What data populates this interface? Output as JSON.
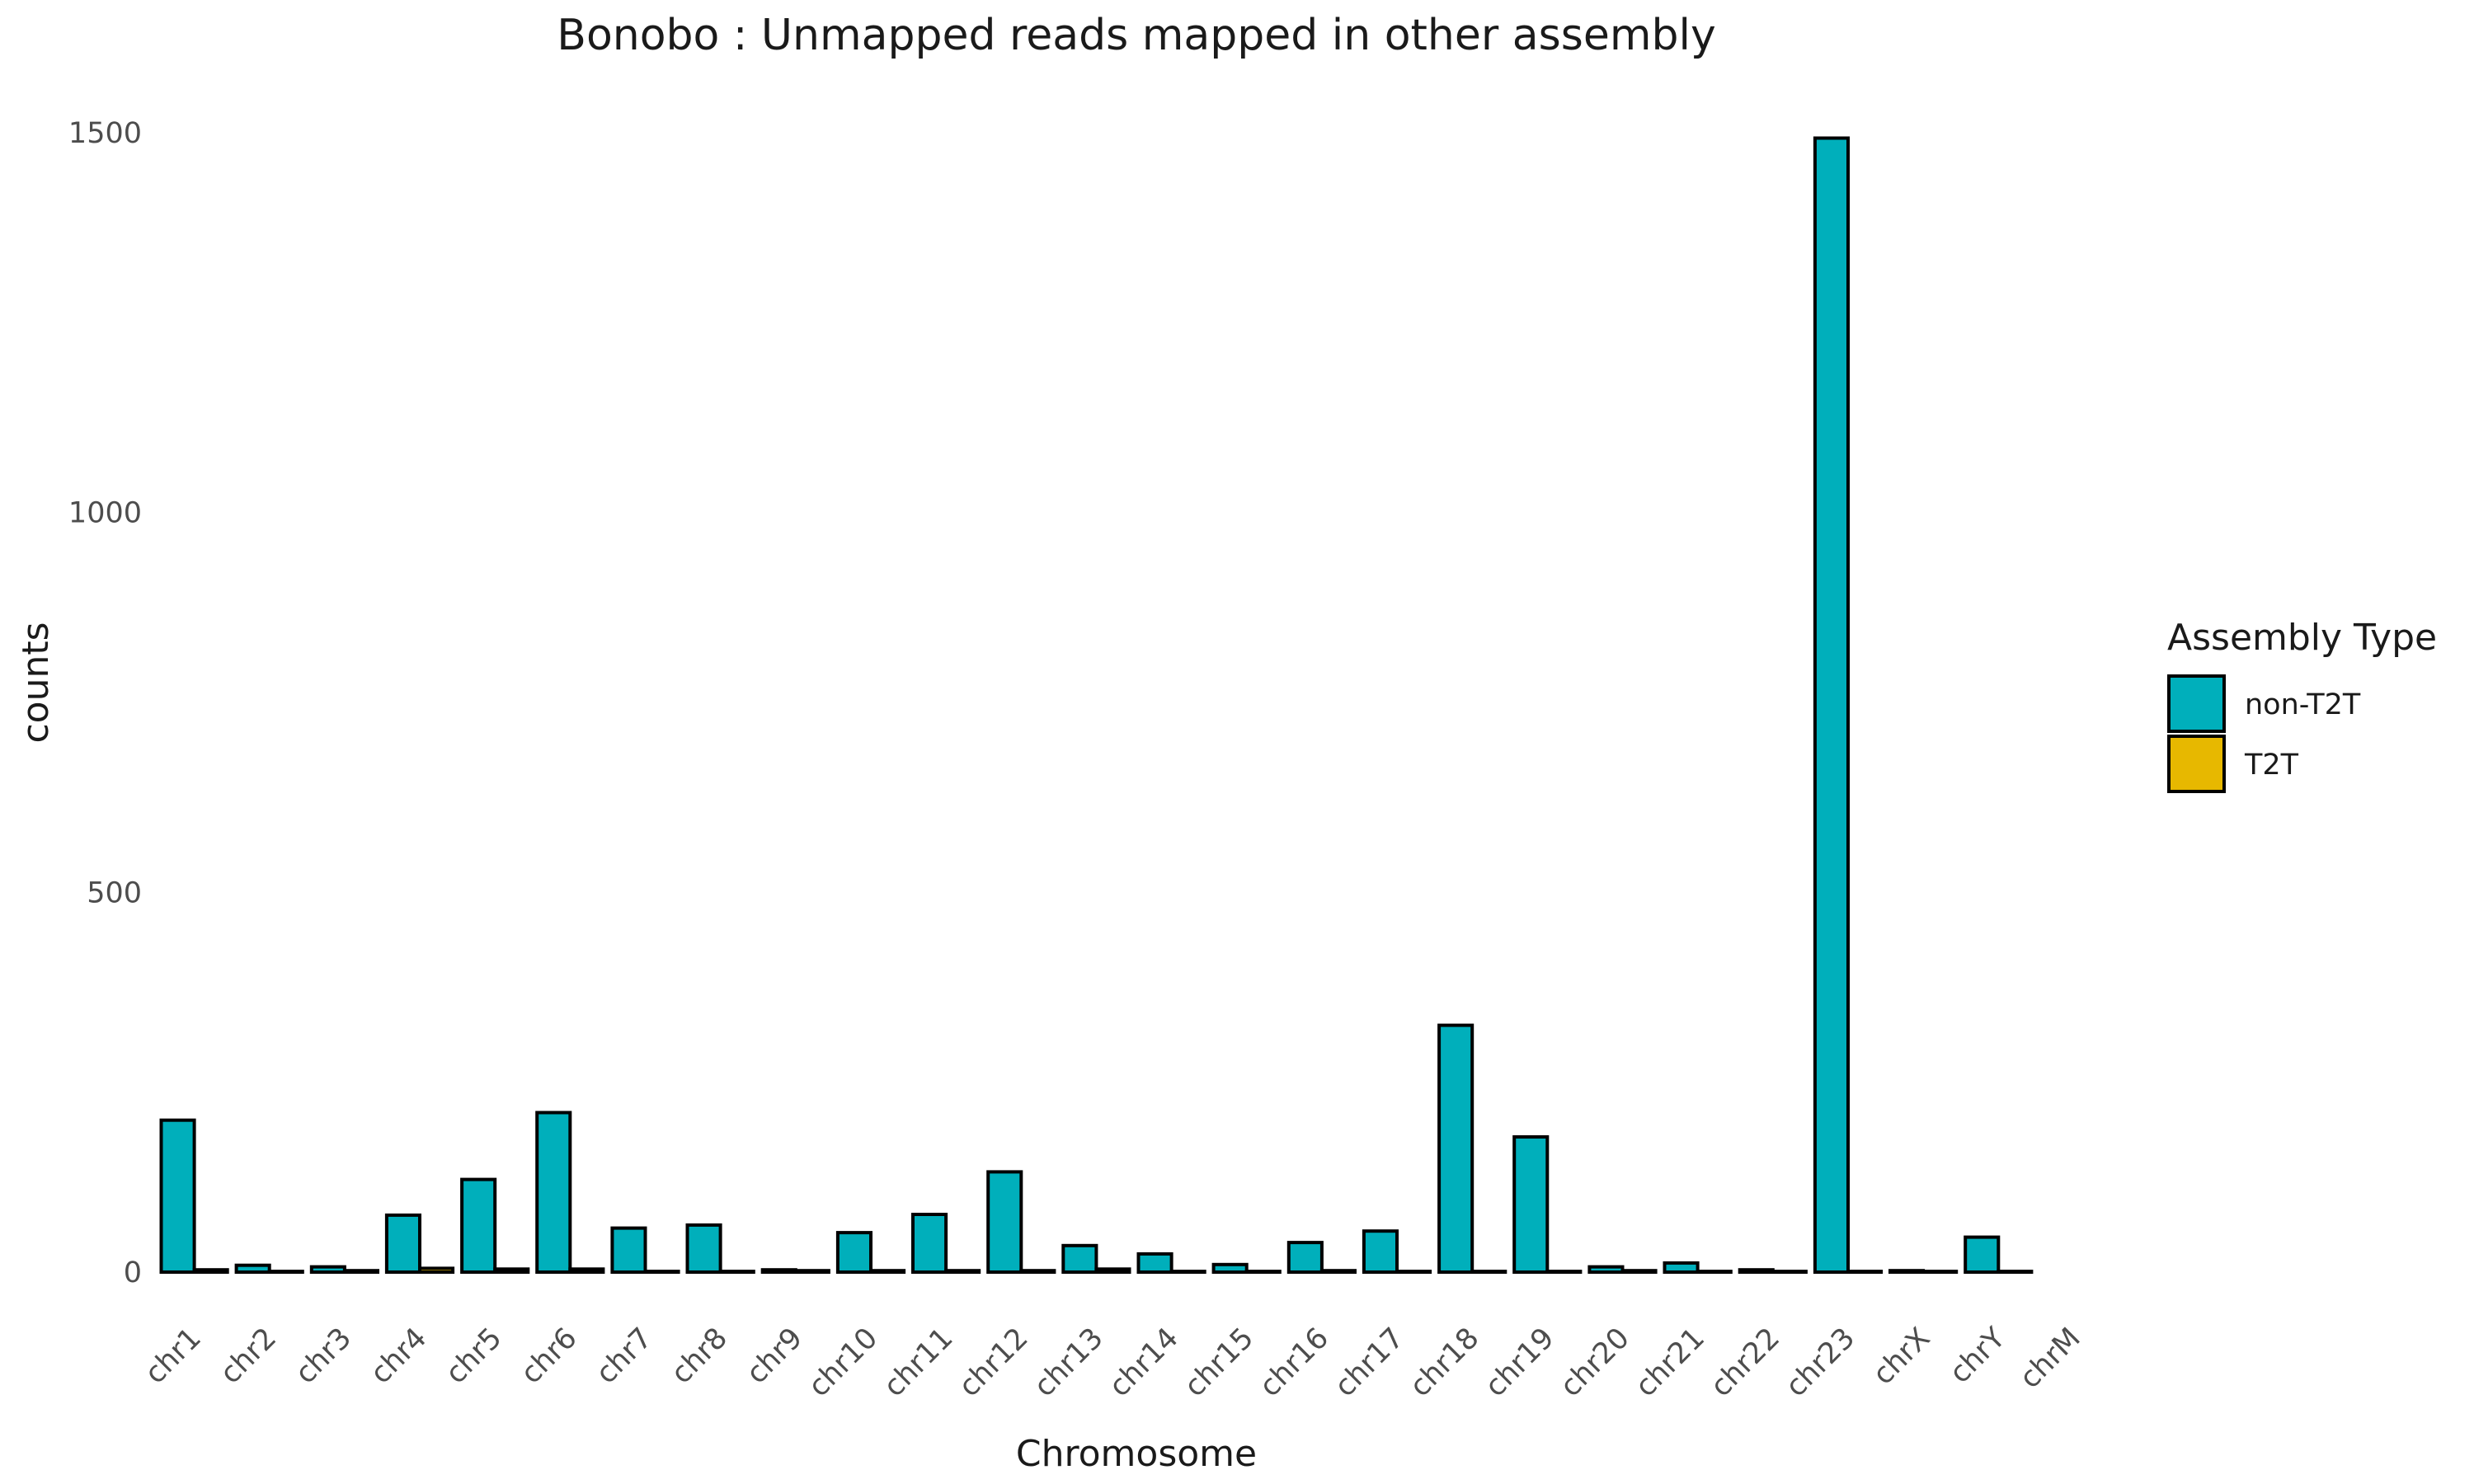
{
  "chart_data": {
    "type": "bar",
    "title": "Bonobo : Unmapped reads mapped in other assembly",
    "xlabel": "Chromosome",
    "ylabel": "counts",
    "ylim": [
      0,
      1560
    ],
    "yticks": [
      0,
      500,
      1000,
      1500
    ],
    "grid": false,
    "legend": {
      "title": "Assembly Type",
      "position": "right"
    },
    "categories": [
      "chr1",
      "chr2",
      "chr3",
      "chr4",
      "chr5",
      "chr6",
      "chr7",
      "chr8",
      "chr9",
      "chr10",
      "chr11",
      "chr12",
      "chr13",
      "chr14",
      "chr15",
      "chr16",
      "chr17",
      "chr18",
      "chr19",
      "chr20",
      "chr21",
      "chr22",
      "chr23",
      "chrX",
      "chrY",
      "chrM"
    ],
    "series": [
      {
        "name": "non-T2T",
        "color": "#00AFBB",
        "values": [
          200,
          9,
          7,
          75,
          122,
          210,
          58,
          62,
          3,
          52,
          76,
          132,
          35,
          24,
          10,
          39,
          54,
          325,
          178,
          7,
          12,
          3,
          1493,
          2,
          46,
          0
        ]
      },
      {
        "name": "T2T",
        "color": "#E7B800",
        "values": [
          3,
          1,
          2,
          5,
          4,
          4,
          1,
          1,
          2,
          2,
          2,
          2,
          4,
          1,
          1,
          2,
          1,
          1,
          1,
          2,
          1,
          1,
          1,
          1,
          1,
          0
        ]
      }
    ]
  }
}
